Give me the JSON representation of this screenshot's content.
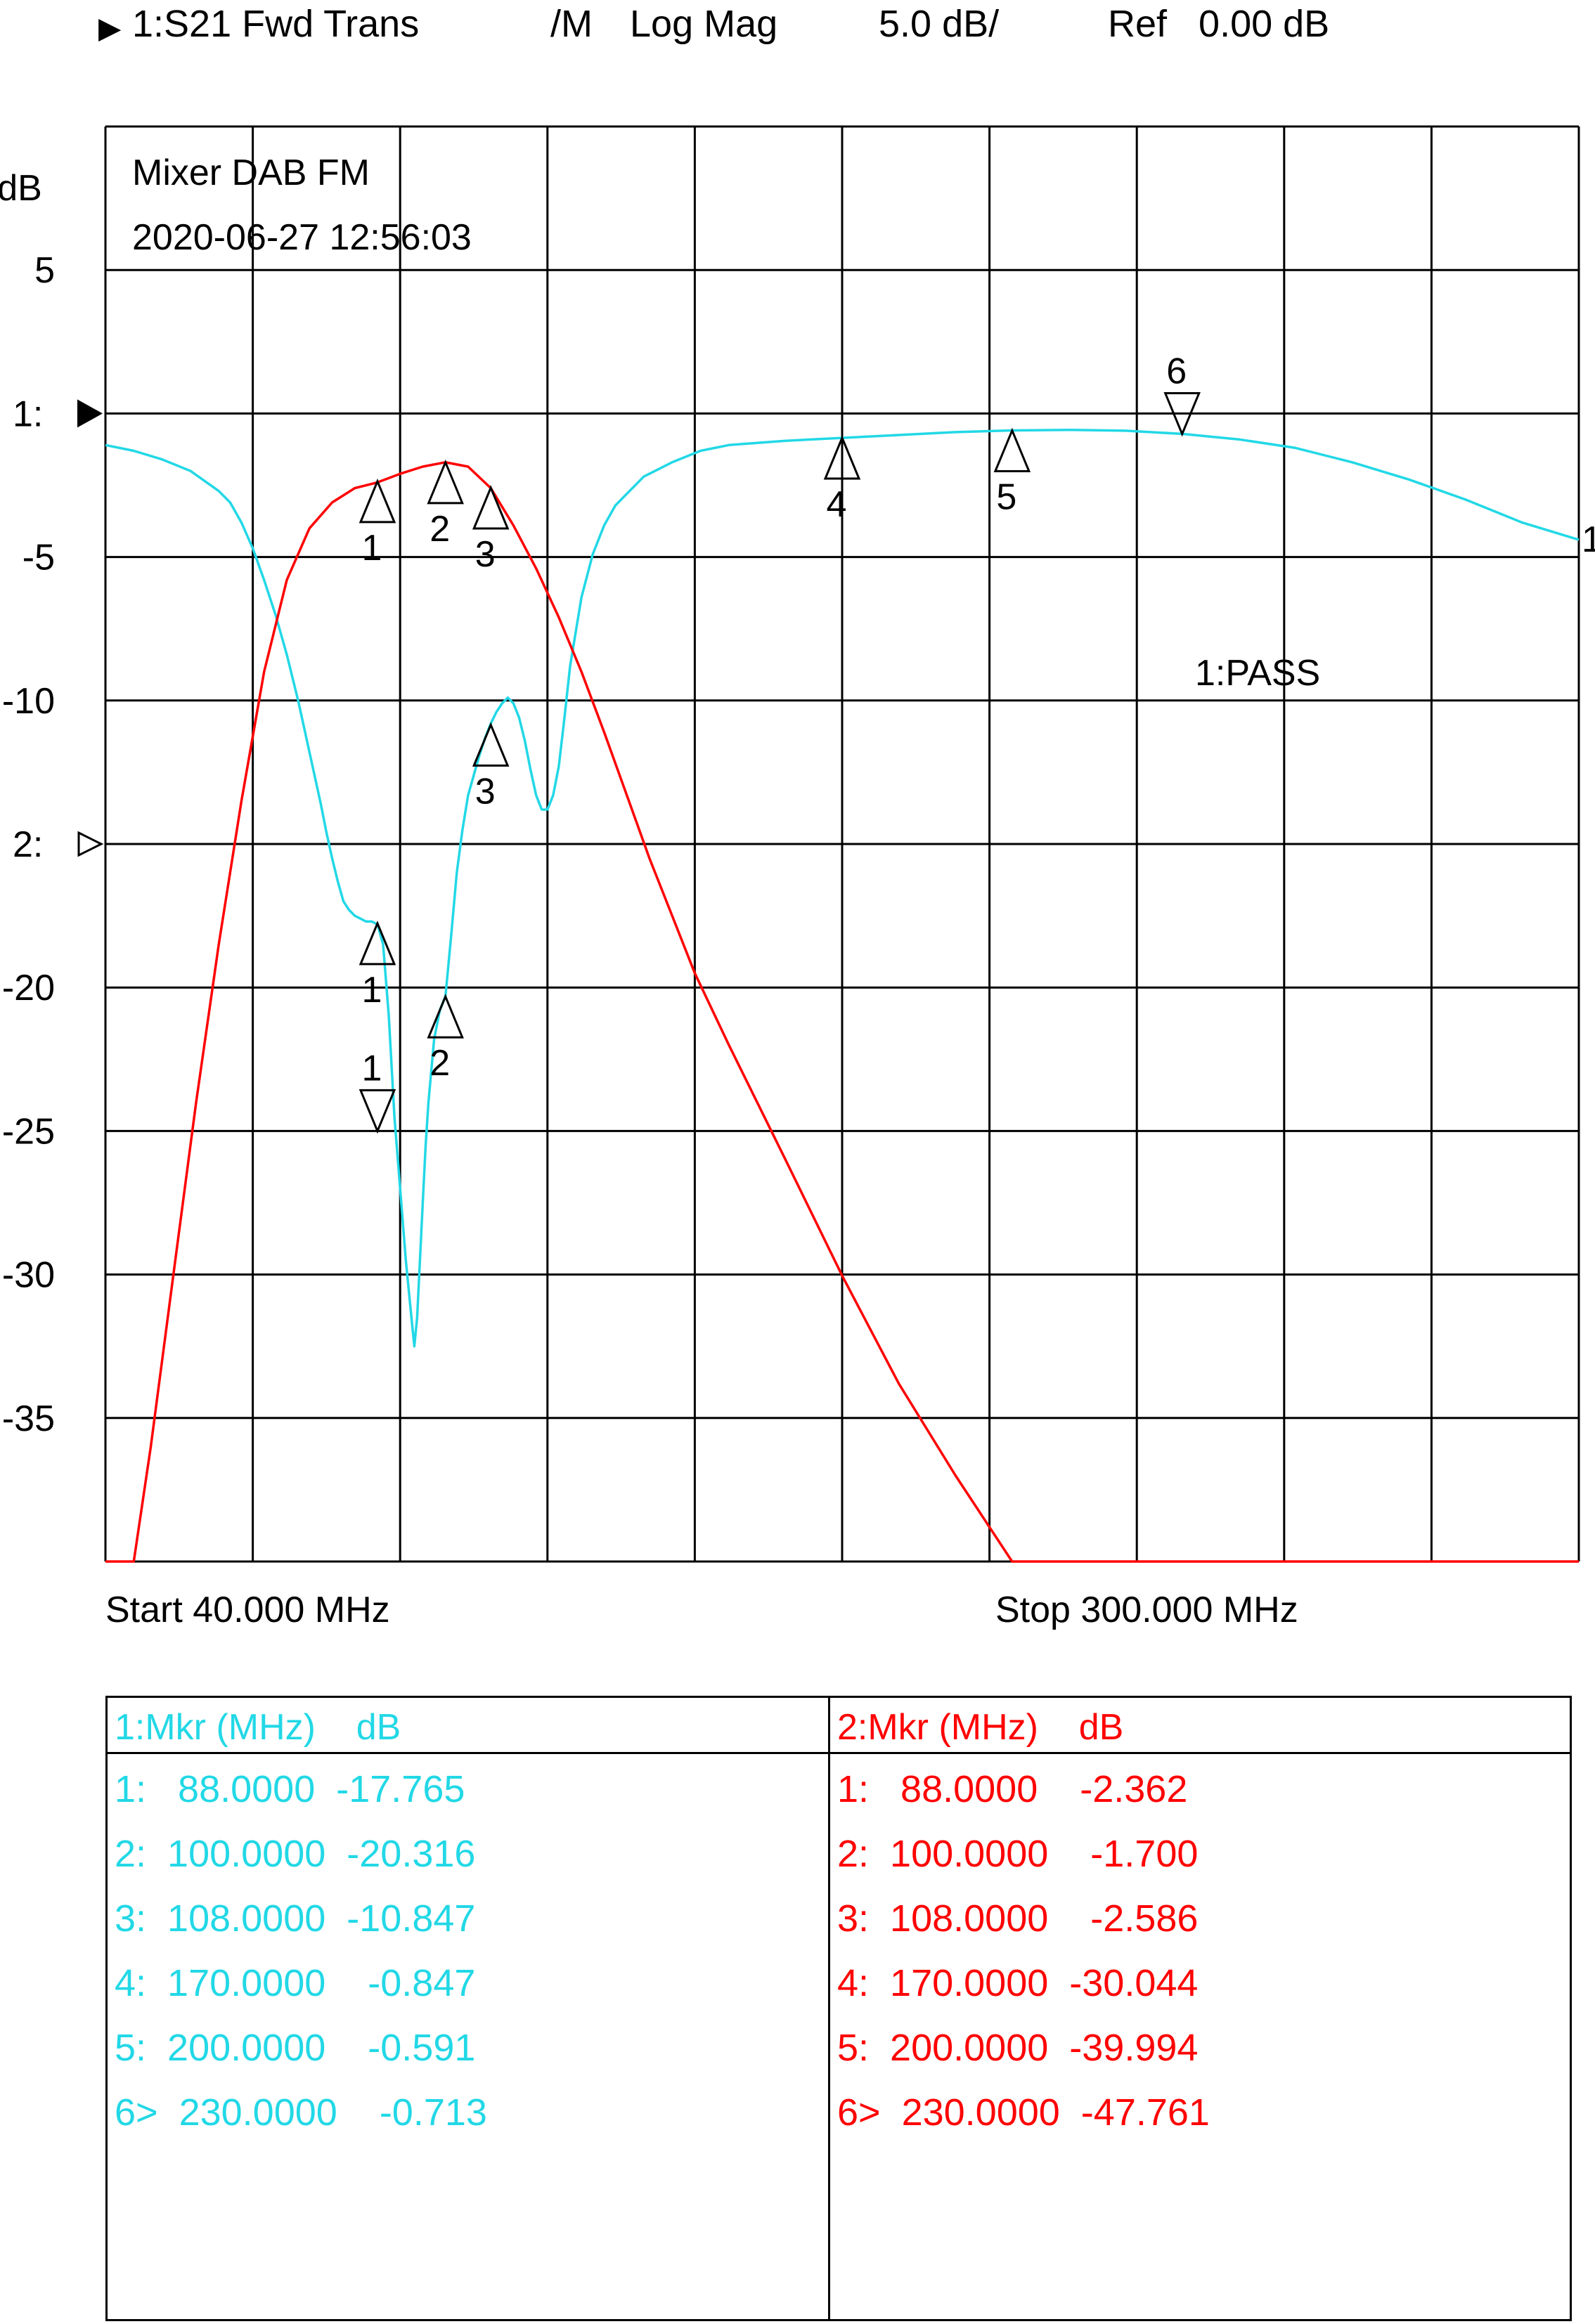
{
  "header": {
    "marker_arrow_glyph": "▶",
    "trace": "1:S21 Fwd Trans",
    "memory": "/M",
    "format": "Log Mag",
    "scale": "5.0 dB/",
    "ref": "Ref   0.00 dB"
  },
  "colors": {
    "trace1": "#22d8e6",
    "trace2": "#ff0000",
    "grid": "#000000"
  },
  "chart_data": {
    "type": "line",
    "title": "Mixer DAB FM",
    "timestamp": "2020-06-27 12:56:03",
    "ylabel": "dB",
    "yunit_ticks": [
      "5",
      "-5",
      "-10",
      "-20",
      "-25",
      "-30",
      "-35"
    ],
    "ref_markers": [
      "1:",
      "2:"
    ],
    "trace_end_label": "1",
    "limit_status": "1:PASS",
    "start_label": "Start 40.000 MHz",
    "stop_label": "Stop 300.000 MHz",
    "xlim": [
      40,
      300
    ],
    "ylim": [
      -40,
      10
    ],
    "grid": true,
    "series": [
      {
        "id": "trace1",
        "x": [
          40,
          45,
          50,
          55,
          60,
          62,
          64,
          66,
          68,
          70,
          72,
          74,
          75,
          76,
          77,
          78,
          79,
          80,
          81,
          82,
          83,
          84,
          85,
          86,
          87,
          88,
          89,
          90,
          91,
          92,
          93,
          94,
          94.5,
          95,
          95.5,
          96,
          96.5,
          97,
          98,
          99,
          100,
          101,
          102,
          103,
          104,
          105,
          106,
          107,
          108,
          109,
          110,
          111,
          112,
          113,
          114,
          115,
          116,
          117,
          118,
          119,
          120,
          121,
          122,
          124,
          126,
          128,
          130,
          135,
          140,
          145,
          150,
          160,
          170,
          180,
          190,
          200,
          210,
          220,
          230,
          240,
          250,
          260,
          270,
          280,
          290,
          295,
          300
        ],
        "values": [
          -1.1,
          -1.3,
          -1.6,
          -2.0,
          -2.7,
          -3.1,
          -3.8,
          -4.7,
          -5.8,
          -7.0,
          -8.4,
          -10.0,
          -10.9,
          -11.8,
          -12.7,
          -13.6,
          -14.6,
          -15.5,
          -16.3,
          -17.0,
          -17.3,
          -17.5,
          -17.6,
          -17.7,
          -17.7,
          -17.8,
          -18.5,
          -21.0,
          -24.5,
          -27.0,
          -29.5,
          -31.5,
          -32.5,
          -31.5,
          -29.5,
          -27.5,
          -25.5,
          -24.0,
          -21.8,
          -20.8,
          -20.3,
          -18.2,
          -16.0,
          -14.5,
          -13.3,
          -12.6,
          -11.9,
          -11.3,
          -10.8,
          -10.4,
          -10.1,
          -9.9,
          -10.1,
          -10.6,
          -11.4,
          -12.4,
          -13.3,
          -13.8,
          -13.8,
          -13.3,
          -12.3,
          -10.6,
          -8.8,
          -6.4,
          -4.9,
          -3.9,
          -3.2,
          -2.2,
          -1.7,
          -1.3,
          -1.1,
          -0.95,
          -0.85,
          -0.75,
          -0.65,
          -0.59,
          -0.57,
          -0.6,
          -0.71,
          -0.9,
          -1.2,
          -1.7,
          -2.3,
          -3.0,
          -3.8,
          -4.1,
          -4.4
        ]
      },
      {
        "id": "trace2",
        "x": [
          40,
          45,
          48,
          52,
          56,
          60,
          64,
          68,
          72,
          76,
          80,
          84,
          88,
          92,
          96,
          100,
          104,
          108,
          112,
          116,
          120,
          124,
          128,
          132,
          136,
          140,
          144,
          150,
          160,
          170,
          180,
          190,
          200,
          210,
          220,
          230,
          240,
          250,
          260,
          270,
          280,
          290,
          300
        ],
        "values": [
          -40,
          -40,
          -36.0,
          -30.0,
          -24.0,
          -18.5,
          -13.5,
          -9.0,
          -5.8,
          -4.0,
          -3.1,
          -2.6,
          -2.4,
          -2.1,
          -1.85,
          -1.7,
          -1.85,
          -2.6,
          -3.9,
          -5.4,
          -7.1,
          -9.0,
          -11.1,
          -13.3,
          -15.5,
          -17.5,
          -19.5,
          -22.0,
          -26.0,
          -30.04,
          -33.8,
          -37.0,
          -40.0,
          -40,
          -40,
          -40,
          -40,
          -40,
          -40,
          -40,
          -40,
          -40,
          -40
        ]
      }
    ],
    "markers_trace1": [
      {
        "label": "1",
        "x": 88,
        "y": -17.765,
        "dir": "up"
      },
      {
        "label": "2",
        "x": 100,
        "y": -20.316,
        "dir": "up"
      },
      {
        "label": "3",
        "x": 108,
        "y": -10.847,
        "dir": "up"
      },
      {
        "label": "4",
        "x": 170,
        "y": -0.847,
        "dir": "up"
      },
      {
        "label": "5",
        "x": 200,
        "y": -0.591,
        "dir": "up"
      },
      {
        "label": "6",
        "x": 230,
        "y": -0.713,
        "dir": "down"
      }
    ],
    "markers_trace2": [
      {
        "label": "1",
        "x": 88,
        "y": -2.362,
        "dir": "up"
      },
      {
        "label": "2",
        "x": 100,
        "y": -1.7,
        "dir": "up"
      },
      {
        "label": "3",
        "x": 108,
        "y": -2.586,
        "dir": "up"
      },
      {
        "label": "1",
        "x": 88,
        "y": -25.0,
        "dir": "down"
      }
    ]
  },
  "table": {
    "trace1_header": "1:Mkr (MHz)    dB",
    "trace2_header": "2:Mkr (MHz)    dB",
    "trace1_rows": [
      "1:   88.0000  -17.765",
      "2:  100.0000  -20.316",
      "3:  108.0000  -10.847",
      "4:  170.0000    -0.847",
      "5:  200.0000    -0.591",
      "6>  230.0000    -0.713"
    ],
    "trace2_rows": [
      "1:   88.0000    -2.362",
      "2:  100.0000    -1.700",
      "3:  108.0000    -2.586",
      "4:  170.0000  -30.044",
      "5:  200.0000  -39.994",
      "6>  230.0000  -47.761"
    ]
  }
}
